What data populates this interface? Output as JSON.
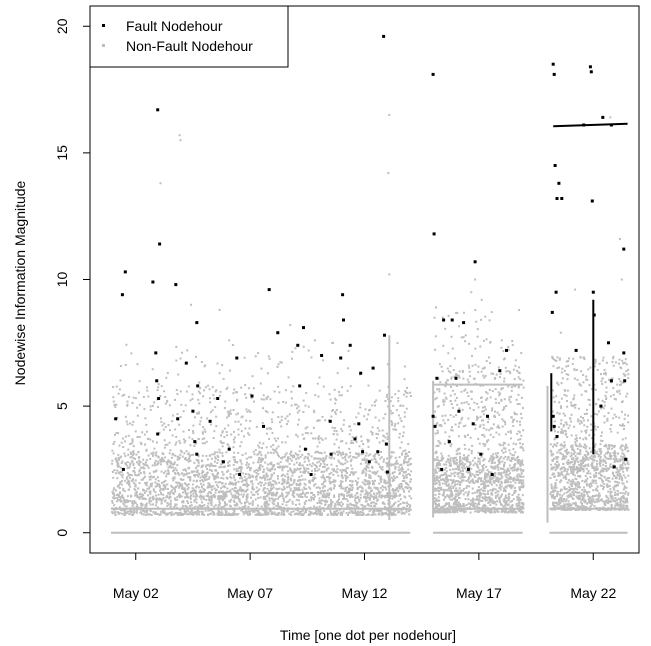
{
  "chart_data": {
    "type": "scatter",
    "title": "",
    "xlabel": "Time [one dot per nodehour]",
    "ylabel": "Nodewise Information Magnitude",
    "x_type": "date",
    "x_range": [
      "2008-04-30",
      "2008-05-24"
    ],
    "x_ticks": [
      {
        "date": "2008-05-02",
        "label": "May 02"
      },
      {
        "date": "2008-05-07",
        "label": "May 07"
      },
      {
        "date": "2008-05-12",
        "label": "May 12"
      },
      {
        "date": "2008-05-17",
        "label": "May 17"
      },
      {
        "date": "2008-05-22",
        "label": "May 22"
      }
    ],
    "ylim": [
      -0.8,
      20.8
    ],
    "y_ticks": [
      0,
      5,
      10,
      15,
      20
    ],
    "grid": false,
    "legend_position": "top-left",
    "gaps": [
      [
        "2008-05-14",
        "2008-05-15"
      ],
      [
        "2008-05-19",
        "2008-05-20"
      ]
    ],
    "series": [
      {
        "name": "Fault Nodehour",
        "color": "#000000",
        "marker": "square",
        "points": [
          [
            "2008-05-01 03:00",
            4.5
          ],
          [
            "2008-05-01 11:00",
            2.5
          ],
          [
            "2008-05-01 10:00",
            9.4
          ],
          [
            "2008-05-01 13:00",
            10.3
          ],
          [
            "2008-05-02 18:00",
            9.9
          ],
          [
            "2008-05-02 23:00",
            16.7
          ],
          [
            "2008-05-03 01:00",
            11.4
          ],
          [
            "2008-05-02 21:00",
            7.1
          ],
          [
            "2008-05-02 22:00",
            6.0
          ],
          [
            "2008-05-03 00:00",
            5.3
          ],
          [
            "2008-05-02 23:00",
            3.9
          ],
          [
            "2008-05-03 18:00",
            9.8
          ],
          [
            "2008-05-03 20:00",
            4.5
          ],
          [
            "2008-05-04 05:00",
            6.7
          ],
          [
            "2008-05-04 12:00",
            4.8
          ],
          [
            "2008-05-04 16:00",
            8.3
          ],
          [
            "2008-05-04 17:00",
            5.8
          ],
          [
            "2008-05-04 14:00",
            3.6
          ],
          [
            "2008-05-04 16:00",
            3.1
          ],
          [
            "2008-05-05 06:00",
            4.4
          ],
          [
            "2008-05-05 14:00",
            5.3
          ],
          [
            "2008-05-05 20:00",
            2.8
          ],
          [
            "2008-05-06 02:00",
            3.3
          ],
          [
            "2008-05-06 10:00",
            6.9
          ],
          [
            "2008-05-06 13:00",
            2.3
          ],
          [
            "2008-05-07 02:00",
            5.4
          ],
          [
            "2008-05-07 14:00",
            4.2
          ],
          [
            "2008-05-07 20:00",
            9.6
          ],
          [
            "2008-05-08 05:00",
            7.9
          ],
          [
            "2008-05-09 02:00",
            7.4
          ],
          [
            "2008-05-09 04:00",
            5.8
          ],
          [
            "2008-05-09 08:00",
            8.1
          ],
          [
            "2008-05-09 10:00",
            3.3
          ],
          [
            "2008-05-09 16:00",
            2.3
          ],
          [
            "2008-05-10 03:00",
            7.0
          ],
          [
            "2008-05-10 12:00",
            4.4
          ],
          [
            "2008-05-10 13:00",
            3.1
          ],
          [
            "2008-05-10 23:00",
            6.9
          ],
          [
            "2008-05-11 01:00",
            9.4
          ],
          [
            "2008-05-11 02:00",
            8.4
          ],
          [
            "2008-05-11 09:00",
            7.4
          ],
          [
            "2008-05-11 14:00",
            3.7
          ],
          [
            "2008-05-11 18:00",
            4.3
          ],
          [
            "2008-05-11 20:00",
            6.3
          ],
          [
            "2008-05-11 22:00",
            3.2
          ],
          [
            "2008-05-12 05:00",
            2.8
          ],
          [
            "2008-05-12 09:00",
            6.5
          ],
          [
            "2008-05-12 14:00",
            3.2
          ],
          [
            "2008-05-12 20:00",
            19.6
          ],
          [
            "2008-05-12 21:00",
            7.8
          ],
          [
            "2008-05-13 00:00",
            2.4
          ],
          [
            "2008-05-12 23:00",
            3.5
          ],
          [
            "2008-05-15 00:00",
            18.1
          ],
          [
            "2008-05-15 01:00",
            11.8
          ],
          [
            "2008-05-15 00:00",
            4.6
          ],
          [
            "2008-05-15 02:00",
            4.2
          ],
          [
            "2008-05-15 04:00",
            6.1
          ],
          [
            "2008-05-15 09:00",
            2.5
          ],
          [
            "2008-05-15 11:00",
            8.4
          ],
          [
            "2008-05-15 17:00",
            3.6
          ],
          [
            "2008-05-15 20:00",
            8.4
          ],
          [
            "2008-05-16 00:00",
            6.1
          ],
          [
            "2008-05-16 03:00",
            4.8
          ],
          [
            "2008-05-16 08:00",
            8.3
          ],
          [
            "2008-05-16 13:00",
            2.5
          ],
          [
            "2008-05-16 18:00",
            4.3
          ],
          [
            "2008-05-16 20:00",
            10.7
          ],
          [
            "2008-05-17 02:00",
            3.1
          ],
          [
            "2008-05-17 09:00",
            4.6
          ],
          [
            "2008-05-17 14:00",
            2.3
          ],
          [
            "2008-05-17 22:00",
            6.4
          ],
          [
            "2008-05-18 05:00",
            7.2
          ],
          [
            "2008-05-20 06:00",
            18.5
          ],
          [
            "2008-05-20 07:00",
            18.1
          ],
          [
            "2008-05-20 08:00",
            14.5
          ],
          [
            "2008-05-20 10:00",
            13.2
          ],
          [
            "2008-05-20 12:00",
            13.8
          ],
          [
            "2008-05-20 09:00",
            9.5
          ],
          [
            "2008-05-20 05:00",
            8.7
          ],
          [
            "2008-05-20 06:00",
            4.6
          ],
          [
            "2008-05-20 07:00",
            4.2
          ],
          [
            "2008-05-20 10:00",
            3.8
          ],
          [
            "2008-05-20 15:00",
            13.2
          ],
          [
            "2008-05-21 06:00",
            7.2
          ],
          [
            "2008-05-21 21:00",
            18.4
          ],
          [
            "2008-05-21 22:00",
            18.2
          ],
          [
            "2008-05-21 23:00",
            13.1
          ],
          [
            "2008-05-22 00:00",
            9.5
          ],
          [
            "2008-05-22 01:00",
            8.6
          ],
          [
            "2008-05-22 08:00",
            5.0
          ],
          [
            "2008-05-22 16:00",
            7.5
          ],
          [
            "2008-05-22 19:00",
            6.0
          ],
          [
            "2008-05-23 08:00",
            11.2
          ],
          [
            "2008-05-23 08:00",
            7.1
          ],
          [
            "2008-05-23 09:00",
            6.0
          ],
          [
            "2008-05-23 10:00",
            2.9
          ],
          [
            "2008-05-22 22:00",
            2.6
          ],
          [
            "2008-05-21 14:00",
            16.1
          ],
          [
            "2008-05-22 10:00",
            16.4
          ],
          [
            "2008-05-22 19:00",
            16.1
          ]
        ],
        "lines": [
          {
            "x": [
              "2008-05-20 06:00",
              "2008-05-23 12:00"
            ],
            "y": [
              16.05,
              16.15
            ]
          },
          {
            "x": [
              "2008-05-22 00:00",
              "2008-05-22 00:00"
            ],
            "y": [
              3.1,
              9.2
            ]
          },
          {
            "x": [
              "2008-05-20 04:00",
              "2008-05-20 04:00"
            ],
            "y": [
              4.0,
              6.3
            ]
          }
        ]
      },
      {
        "name": "Non-Fault Nodehour",
        "color": "#bebebe",
        "marker": "square",
        "points": [
          [
            "2008-05-03 02:00",
            13.8
          ],
          [
            "2008-05-03 23:00",
            15.5
          ],
          [
            "2008-05-03 22:00",
            15.7
          ],
          [
            "2008-05-13 02:00",
            16.5
          ],
          [
            "2008-05-13 01:00",
            14.2
          ],
          [
            "2008-05-13 02:00",
            10.2
          ],
          [
            "2008-05-04 10:00",
            9.0
          ],
          [
            "2008-05-04 06:00",
            7.2
          ],
          [
            "2008-05-06 02:00",
            7.6
          ],
          [
            "2008-05-05 16:00",
            8.8
          ],
          [
            "2008-05-08 18:00",
            8.2
          ],
          [
            "2008-05-09 20:00",
            7.6
          ],
          [
            "2008-05-16 16:00",
            9.5
          ],
          [
            "2008-05-16 20:00",
            10.0
          ],
          [
            "2008-05-18 00:00",
            7.6
          ],
          [
            "2008-05-22 18:00",
            16.4
          ],
          [
            "2008-05-23 04:00",
            11.6
          ],
          [
            "2008-05-23 06:00",
            10.0
          ],
          [
            "2008-05-20 14:00",
            7.9
          ],
          [
            "2008-05-15 03:00",
            8.9
          ],
          [
            "2008-05-15 10:00",
            8.5
          ],
          [
            "2008-05-17 03:00",
            9.2
          ],
          [
            "2008-05-21 05:00",
            9.6
          ],
          [
            "2008-05-10 15:00",
            7.5
          ]
        ],
        "lines": [
          {
            "x": [
              "2008-04-30 22:00",
              "2008-05-14 00:00"
            ],
            "y": [
              0.0,
              0.0
            ]
          },
          {
            "x": [
              "2008-05-15 00:00",
              "2008-05-18 22:00"
            ],
            "y": [
              0.0,
              0.0
            ]
          },
          {
            "x": [
              "2008-05-20 02:00",
              "2008-05-23 12:00"
            ],
            "y": [
              0.0,
              0.0
            ]
          },
          {
            "x": [
              "2008-04-30 22:00",
              "2008-05-14 00:00"
            ],
            "y": [
              0.95,
              0.95
            ]
          },
          {
            "x": [
              "2008-05-15 00:00",
              "2008-05-18 22:00"
            ],
            "y": [
              0.95,
              0.95
            ]
          },
          {
            "x": [
              "2008-05-20 02:00",
              "2008-05-23 12:00"
            ],
            "y": [
              0.95,
              0.95
            ]
          },
          {
            "x": [
              "2008-05-15 00:00",
              "2008-05-18 22:00"
            ],
            "y": [
              5.85,
              5.85
            ]
          },
          {
            "x": [
              "2008-05-13 02:00",
              "2008-05-13 02:00"
            ],
            "y": [
              0.5,
              7.8
            ]
          },
          {
            "x": [
              "2008-05-15 00:00",
              "2008-05-15 00:00"
            ],
            "y": [
              0.6,
              6.0
            ]
          },
          {
            "x": [
              "2008-05-20 00:00",
              "2008-05-20 00:00"
            ],
            "y": [
              0.4,
              5.8
            ]
          }
        ],
        "clouds": [
          {
            "x": [
              "2008-04-30 22:00",
              "2008-05-14 00:00"
            ],
            "y": [
              0.7,
              3.2
            ],
            "n": 2200
          },
          {
            "x": [
              "2008-04-30 22:00",
              "2008-05-14 00:00"
            ],
            "y": [
              1.4,
              5.8
            ],
            "n": 900
          },
          {
            "x": [
              "2008-04-30 22:00",
              "2008-05-14 00:00"
            ],
            "y": [
              3.5,
              7.5
            ],
            "n": 220
          },
          {
            "x": [
              "2008-05-15 00:00",
              "2008-05-18 22:00"
            ],
            "y": [
              0.8,
              3.0
            ],
            "n": 900
          },
          {
            "x": [
              "2008-05-15 00:00",
              "2008-05-18 22:00"
            ],
            "y": [
              2.0,
              6.6
            ],
            "n": 500
          },
          {
            "x": [
              "2008-05-15 00:00",
              "2008-05-18 22:00"
            ],
            "y": [
              6.0,
              8.8
            ],
            "n": 80
          },
          {
            "x": [
              "2008-05-20 02:00",
              "2008-05-23 12:00"
            ],
            "y": [
              0.9,
              3.5
            ],
            "n": 850
          },
          {
            "x": [
              "2008-05-20 02:00",
              "2008-05-23 12:00"
            ],
            "y": [
              2.5,
              7.0
            ],
            "n": 450
          }
        ]
      }
    ]
  }
}
